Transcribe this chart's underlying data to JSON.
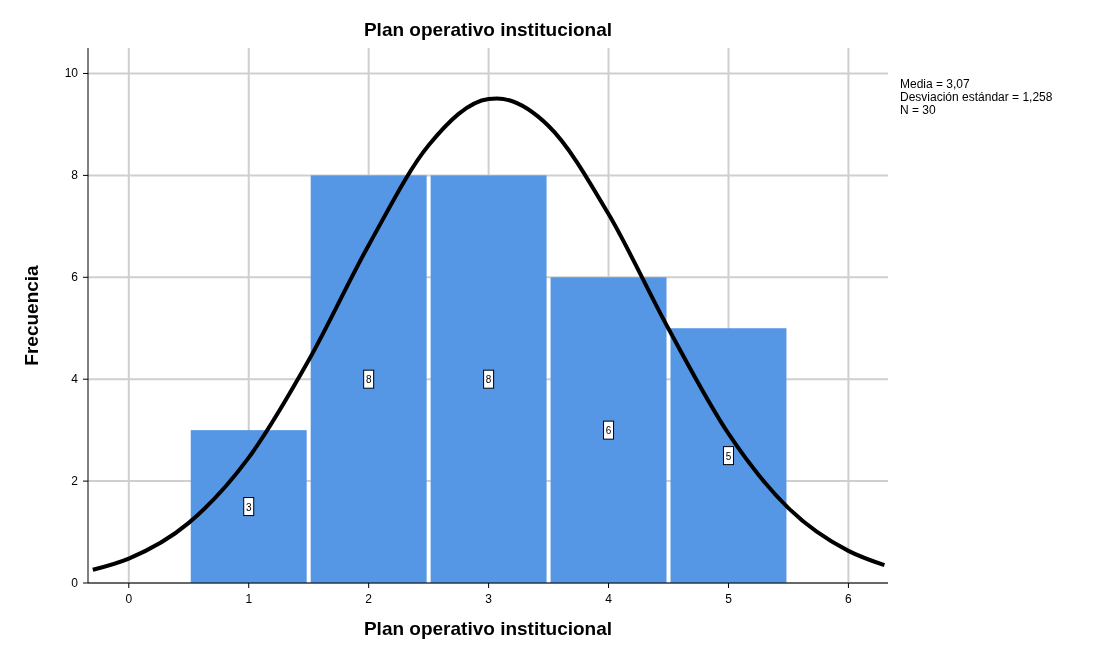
{
  "chart_data": {
    "type": "histogram",
    "title": "Plan operativo institucional",
    "xlabel": "Plan operativo institucional",
    "ylabel": "Frecuencia",
    "bins": [
      0.5,
      1.5,
      2.5,
      3.5,
      4.5,
      5.5
    ],
    "values": [
      3,
      8,
      8,
      6,
      5
    ],
    "color": "#5596e5",
    "value_labels": [
      "3",
      "8",
      "8",
      "6",
      "5"
    ],
    "series": [
      {
        "type": "line",
        "color": "#000000",
        "x": [
          -0.3,
          0,
          0.5,
          1,
          1.5,
          2,
          2.5,
          3,
          3.07,
          3.5,
          4,
          4.5,
          5,
          5.5,
          6,
          6.3
        ],
        "values": [
          0.26,
          0.48,
          1.18,
          2.46,
          4.37,
          6.63,
          8.59,
          9.5,
          9.51,
          8.97,
          7.24,
          4.99,
          2.93,
          1.47,
          0.63,
          0.35
        ]
      }
    ],
    "xlim": [
      -0.34,
      6.33
    ],
    "ylim": [
      0,
      10.5
    ],
    "xticks": [
      0,
      1,
      2,
      3,
      4,
      5,
      6
    ],
    "yticks": [
      0,
      2,
      4,
      6,
      8,
      10
    ],
    "grid": true,
    "marker": "none",
    "annotations": [
      "Media = 3,07",
      "Desviación estándar = 1,258",
      "N = 30"
    ]
  }
}
